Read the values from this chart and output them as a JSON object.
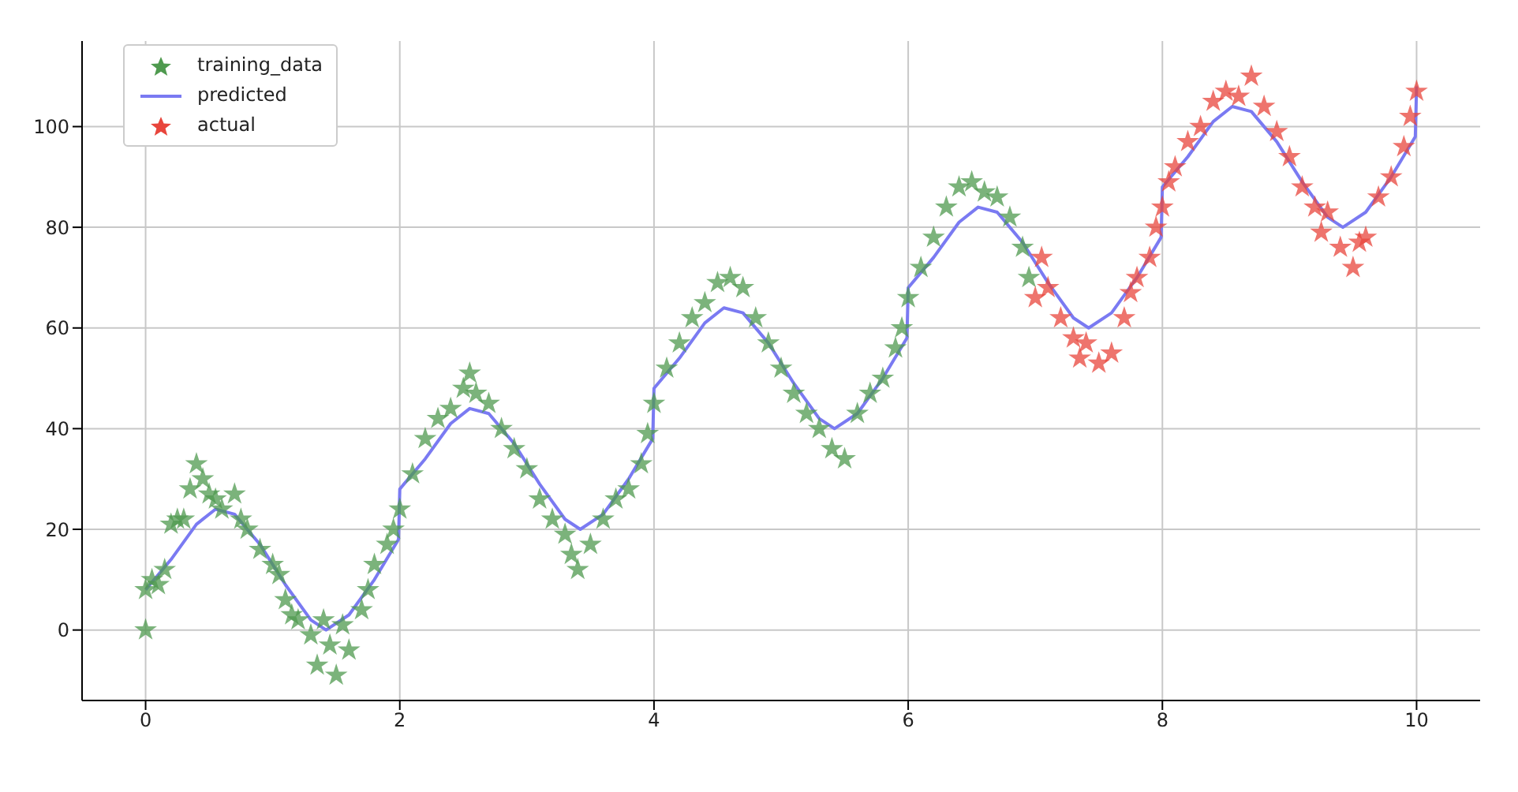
{
  "chart_data": {
    "type": "scatter",
    "xlim": [
      -0.5,
      10.5
    ],
    "ylim": [
      -14,
      117
    ],
    "xticks": [
      0,
      2,
      4,
      6,
      8,
      10
    ],
    "yticks": [
      0,
      20,
      40,
      60,
      80,
      100
    ],
    "grid": true,
    "legend": "top left",
    "series": [
      {
        "name": "training_data",
        "marker": "star",
        "color": "#4f9a4f",
        "x": [
          0,
          0,
          0.05,
          0.1,
          0.15,
          0.2,
          0.25,
          0.3,
          0.35,
          0.4,
          0.45,
          0.5,
          0.55,
          0.6,
          0.7,
          0.75,
          0.8,
          0.9,
          1.0,
          1.05,
          1.1,
          1.15,
          1.2,
          1.3,
          1.35,
          1.4,
          1.45,
          1.5,
          1.55,
          1.6,
          1.7,
          1.75,
          1.8,
          1.9,
          1.95,
          2.0,
          2.1,
          2.2,
          2.3,
          2.4,
          2.5,
          2.55,
          2.6,
          2.7,
          2.8,
          2.9,
          3.0,
          3.1,
          3.2,
          3.3,
          3.35,
          3.4,
          3.5,
          3.6,
          3.7,
          3.8,
          3.9,
          3.95,
          4.0,
          4.1,
          4.2,
          4.3,
          4.4,
          4.5,
          4.6,
          4.7,
          4.8,
          4.9,
          5.0,
          5.1,
          5.2,
          5.3,
          5.4,
          5.5,
          5.6,
          5.7,
          5.8,
          5.9,
          5.95,
          6.0,
          6.1,
          6.2,
          6.3,
          6.4,
          6.5,
          6.6,
          6.7,
          6.8,
          6.9,
          6.95
        ],
        "values": [
          0,
          8,
          10,
          9,
          12,
          21,
          22,
          22,
          28,
          33,
          30,
          27,
          26,
          24,
          27,
          22,
          20,
          16,
          13,
          11,
          6,
          3,
          2,
          -1,
          -7,
          2,
          -3,
          -9,
          1,
          -4,
          4,
          8,
          13,
          17,
          20,
          24,
          31,
          38,
          42,
          44,
          48,
          51,
          47,
          45,
          40,
          36,
          32,
          26,
          22,
          19,
          15,
          12,
          17,
          22,
          26,
          28,
          33,
          39,
          45,
          52,
          57,
          62,
          65,
          69,
          70,
          68,
          62,
          57,
          52,
          47,
          43,
          40,
          36,
          34,
          43,
          47,
          50,
          56,
          60,
          66,
          72,
          78,
          84,
          88,
          89,
          87,
          86,
          82,
          76,
          70
        ]
      },
      {
        "name": "predicted",
        "type": "line",
        "marker": "none",
        "color": "#7a7af2",
        "x": [
          0,
          0.2,
          0.4,
          0.55,
          0.7,
          0.9,
          1.1,
          1.3,
          1.42,
          1.6,
          1.8,
          1.99,
          2,
          2.2,
          2.4,
          2.55,
          2.7,
          2.9,
          3.1,
          3.3,
          3.42,
          3.6,
          3.8,
          3.99,
          4,
          4.2,
          4.4,
          4.55,
          4.7,
          4.9,
          5.1,
          5.3,
          5.42,
          5.6,
          5.8,
          5.99,
          6,
          6.2,
          6.4,
          6.55,
          6.7,
          6.9,
          7.1,
          7.3,
          7.42,
          7.6,
          7.8,
          7.99,
          8,
          8.2,
          8.4,
          8.55,
          8.7,
          8.9,
          9.1,
          9.3,
          9.42,
          9.6,
          9.8,
          9.99,
          10
        ],
        "values": [
          8,
          14,
          21,
          24,
          23,
          17,
          9,
          2,
          0,
          3,
          10,
          18,
          28,
          34,
          41,
          44,
          43,
          37,
          29,
          22,
          20,
          23,
          30,
          38,
          48,
          54,
          61,
          64,
          63,
          57,
          49,
          42,
          40,
          43,
          50,
          58,
          68,
          74,
          81,
          84,
          83,
          77,
          69,
          62,
          60,
          63,
          70,
          78,
          88,
          94,
          101,
          104,
          103,
          97,
          89,
          82,
          80,
          83,
          90,
          98,
          108
        ]
      },
      {
        "name": "actual",
        "marker": "star",
        "color": "#e8453c",
        "x": [
          7.0,
          7.05,
          7.1,
          7.2,
          7.3,
          7.35,
          7.4,
          7.5,
          7.6,
          7.7,
          7.75,
          7.8,
          7.9,
          7.95,
          8.0,
          8.05,
          8.1,
          8.2,
          8.3,
          8.4,
          8.5,
          8.6,
          8.7,
          8.8,
          8.9,
          9.0,
          9.1,
          9.2,
          9.25,
          9.3,
          9.4,
          9.5,
          9.55,
          9.6,
          9.7,
          9.8,
          9.9,
          9.95,
          10.0
        ],
        "values": [
          66,
          74,
          68,
          62,
          58,
          54,
          57,
          53,
          55,
          62,
          67,
          70,
          74,
          80,
          84,
          89,
          92,
          97,
          100,
          105,
          107,
          106,
          110,
          104,
          99,
          94,
          88,
          84,
          79,
          83,
          76,
          72,
          77,
          78,
          86,
          90,
          96,
          102,
          107
        ]
      }
    ]
  }
}
